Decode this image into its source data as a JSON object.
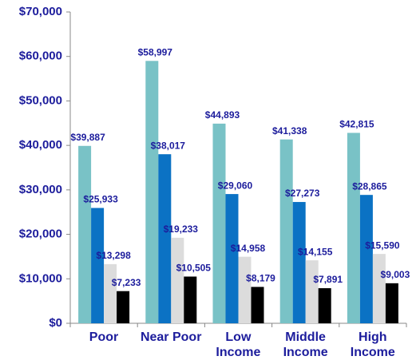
{
  "chart_data": {
    "type": "bar",
    "categories": [
      "Poor",
      "Near Poor",
      "Low\nIncome",
      "Middle\nIncome",
      "High\nIncome"
    ],
    "series": [
      {
        "color": "#79c2c6",
        "values": [
          39887,
          58997,
          44893,
          41338,
          42815
        ],
        "value_labels": [
          "$39,887",
          "$58,997",
          "$44,893",
          "$41,338",
          "$42,815"
        ]
      },
      {
        "color": "#0b72c4",
        "values": [
          25933,
          38017,
          29060,
          27273,
          28865
        ],
        "value_labels": [
          "$25,933",
          "$38,017",
          "$29,060",
          "$27,273",
          "$28,865"
        ]
      },
      {
        "color": "#dcdcdc",
        "values": [
          13298,
          19233,
          14958,
          14155,
          15590
        ],
        "value_labels": [
          "$13,298",
          "$19,233",
          "$14,958",
          "$14,155",
          "$15,590"
        ]
      },
      {
        "color": "#000000",
        "values": [
          7233,
          10505,
          8179,
          7891,
          9003
        ],
        "value_labels": [
          "$7,233",
          "$10,505",
          "$8,179",
          "$7,891",
          "$9,003"
        ]
      }
    ],
    "ylim": [
      0,
      70000
    ],
    "yticks": [
      {
        "value": 0,
        "label": "$0"
      },
      {
        "value": 10000,
        "label": "$10,000"
      },
      {
        "value": 20000,
        "label": "$20,000"
      },
      {
        "value": 30000,
        "label": "$30,000"
      },
      {
        "value": 40000,
        "label": "$40,000"
      },
      {
        "value": 50000,
        "label": "$50,000"
      },
      {
        "value": 60000,
        "label": "$60,000"
      },
      {
        "value": 70000,
        "label": "$70,000"
      }
    ],
    "grid": false
  }
}
